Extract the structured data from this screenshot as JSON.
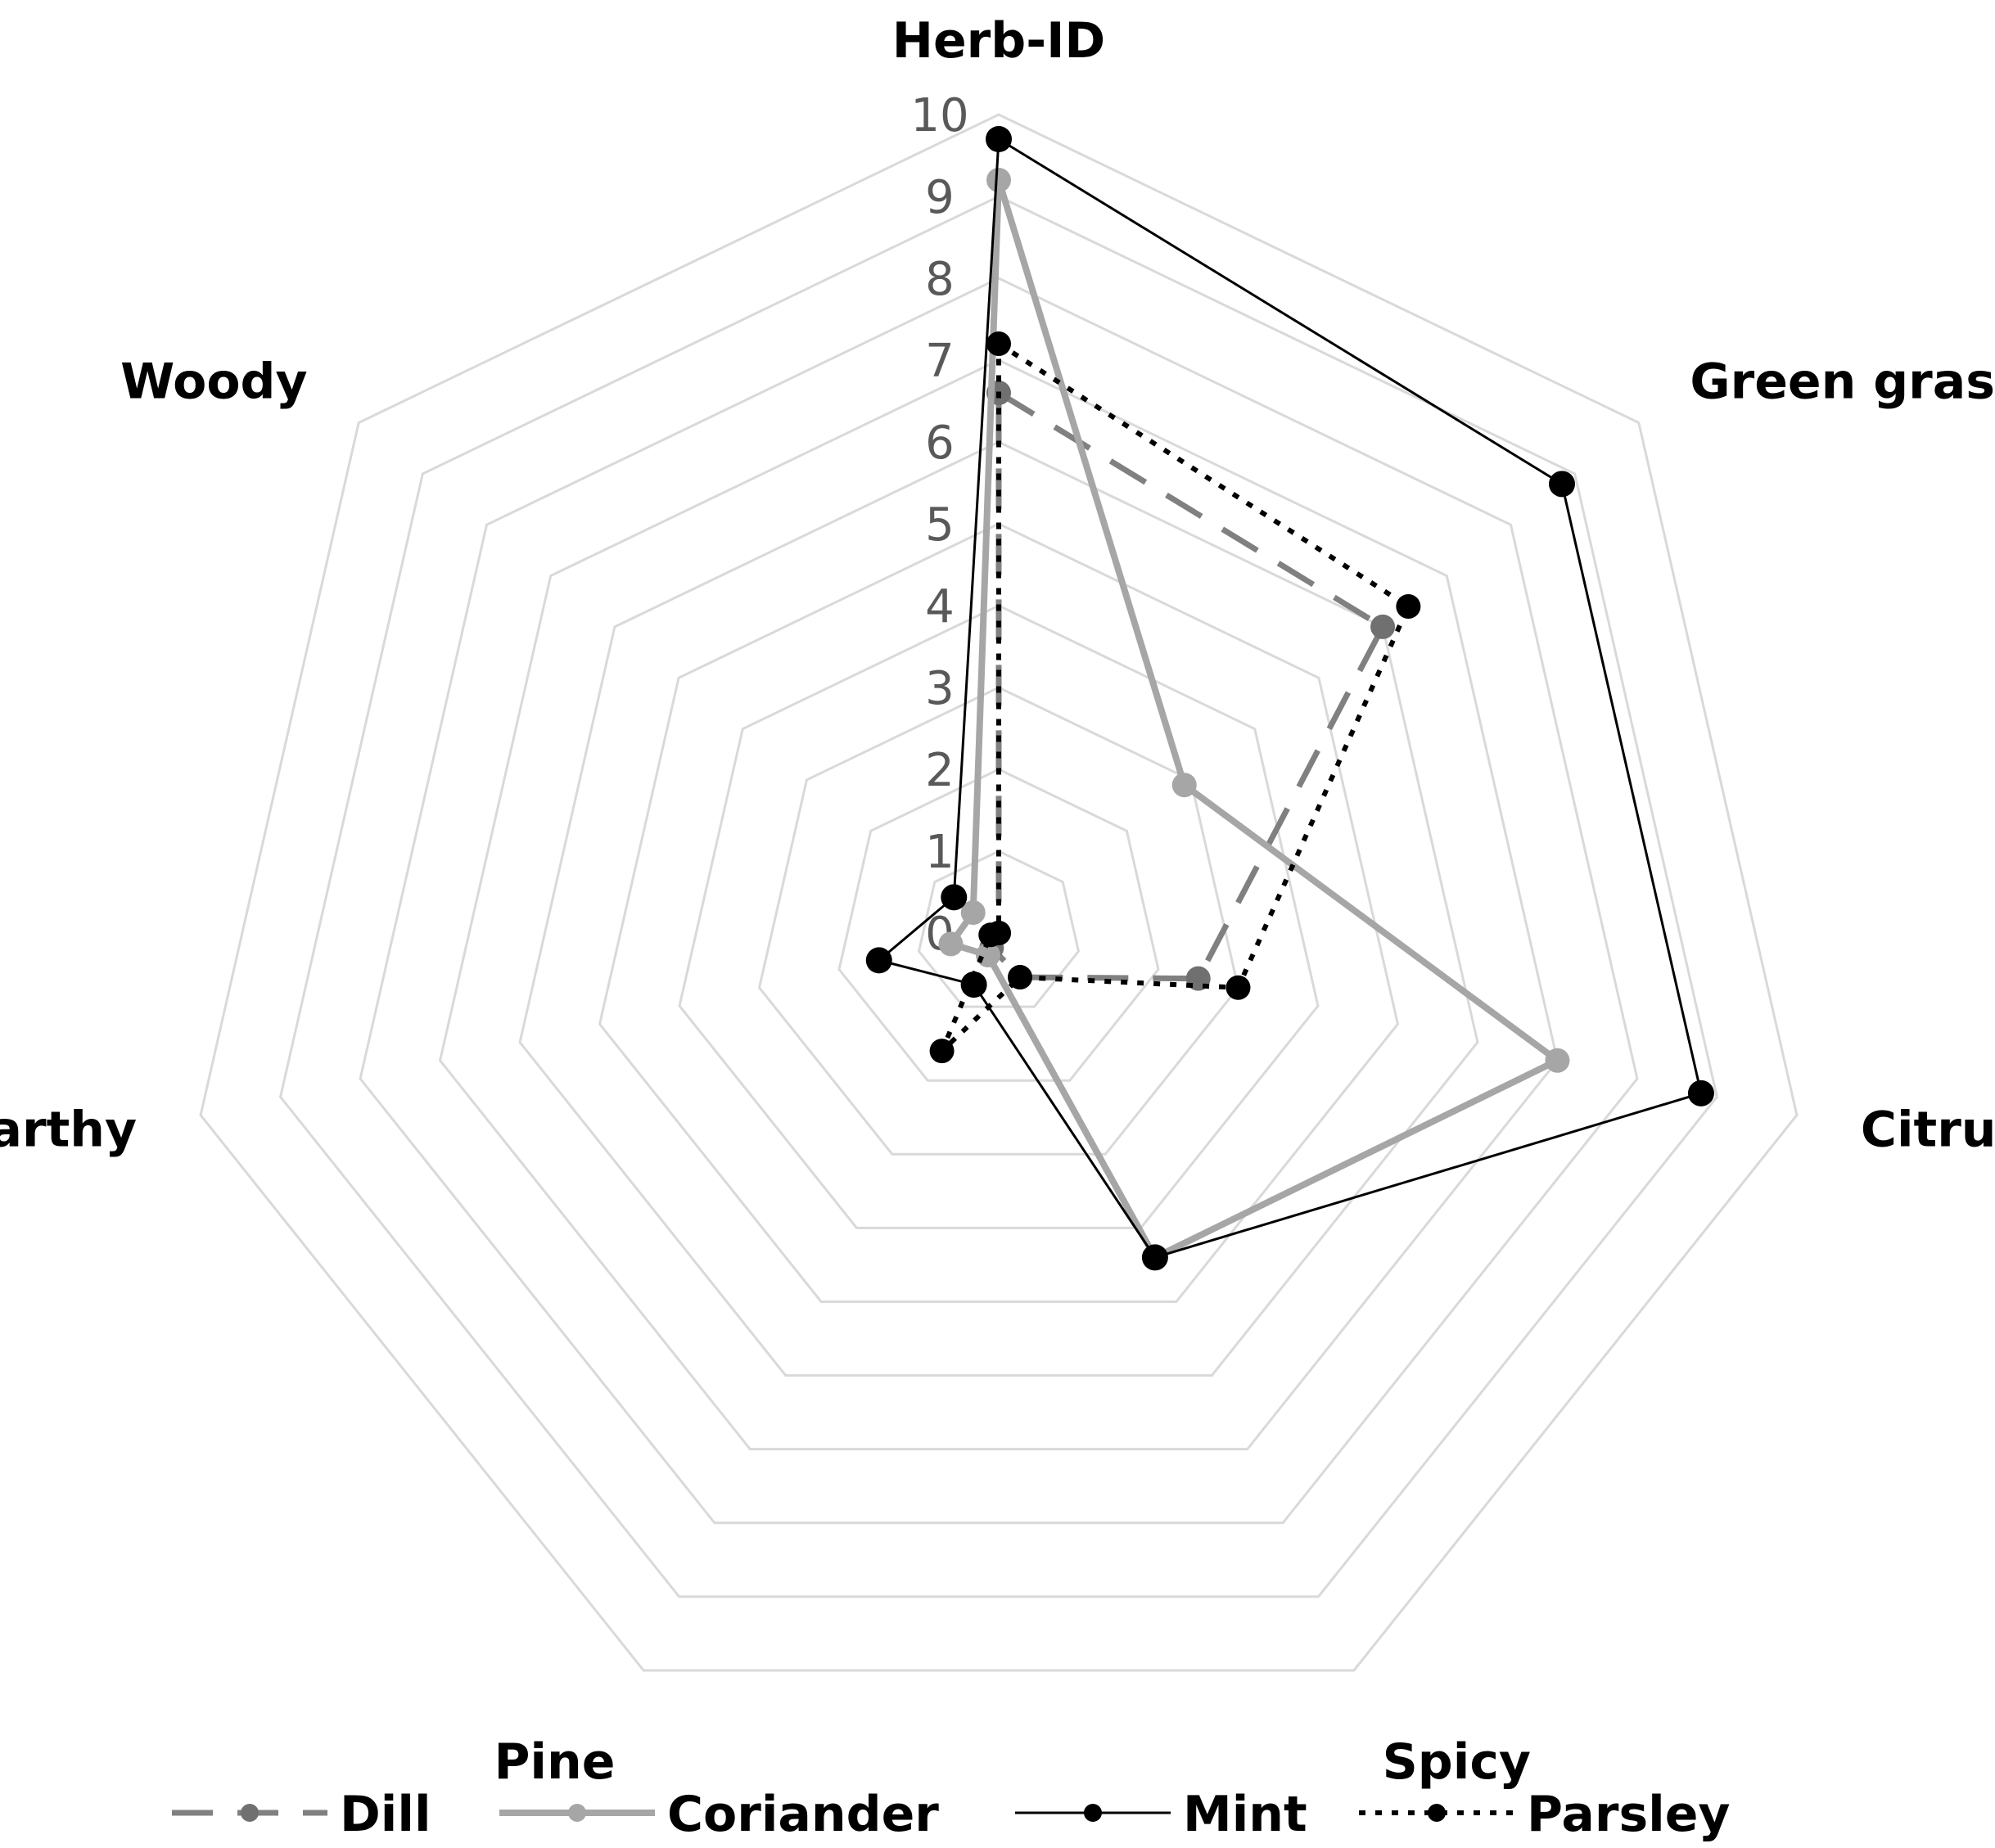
{
  "chart_data": {
    "type": "radar",
    "title": "",
    "axes": [
      "Herb-ID",
      "Green grass",
      "Citrus",
      "Spicy",
      "Pine",
      "Earthy",
      "Woody"
    ],
    "ticks": [
      "0",
      "1",
      "2",
      "3",
      "4",
      "5",
      "6",
      "7",
      "8",
      "9",
      "10"
    ],
    "range": [
      0,
      10
    ],
    "grid": true,
    "legend_position": "bottom",
    "series": [
      {
        "name": "Dill",
        "values": [
          6.6,
          6.0,
          2.5,
          0.6,
          0.2,
          0.0,
          0.0
        ],
        "color": "#808080",
        "line_style": "dashed",
        "marker_color": "#707070"
      },
      {
        "name": "Coriander",
        "values": [
          9.2,
          2.9,
          7.0,
          4.4,
          0.3,
          0.6,
          0.4
        ],
        "color": "#a6a6a6",
        "line_style": "solid-thick",
        "marker_color": "#a6a6a6"
      },
      {
        "name": "Mint",
        "values": [
          9.7,
          8.8,
          8.8,
          4.4,
          0.7,
          1.5,
          0.7
        ],
        "color": "#000000",
        "line_style": "solid-thin",
        "marker_color": "#000000"
      },
      {
        "name": "Parsley",
        "values": [
          7.2,
          6.4,
          3.0,
          0.6,
          1.6,
          0.1,
          0.0
        ],
        "color": "#000000",
        "line_style": "dotted",
        "marker_color": "#000000"
      }
    ]
  }
}
